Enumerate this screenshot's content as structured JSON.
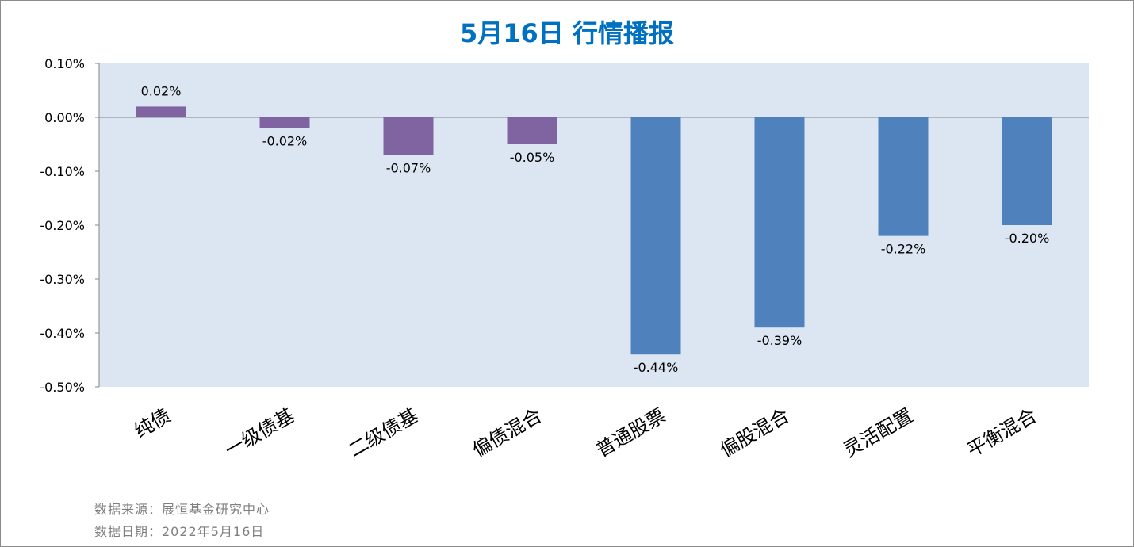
{
  "chart_data": {
    "type": "bar",
    "title": "5月16日  行情播报",
    "categories": [
      "纯债",
      "一级债基",
      "二级债基",
      "偏债混合",
      "普通股票",
      "偏股混合",
      "灵活配置",
      "平衡混合"
    ],
    "values": [
      0.02,
      -0.02,
      -0.07,
      -0.05,
      -0.44,
      -0.39,
      -0.22,
      -0.2
    ],
    "data_labels": [
      "0.02%",
      "-0.02%",
      "-0.07%",
      "-0.05%",
      "-0.44%",
      "-0.39%",
      "-0.22%",
      "-0.20%"
    ],
    "bar_colors": [
      "#8064a2",
      "#8064a2",
      "#8064a2",
      "#8064a2",
      "#4f81bd",
      "#4f81bd",
      "#4f81bd",
      "#4f81bd"
    ],
    "ylim": [
      -0.5,
      0.1
    ],
    "yticks": [
      0.1,
      0.0,
      -0.1,
      -0.2,
      -0.3,
      -0.4,
      -0.5
    ],
    "ytick_labels": [
      "0.10%",
      "0.00%",
      "-0.10%",
      "-0.20%",
      "-0.30%",
      "-0.40%",
      "-0.50%"
    ],
    "grid": false,
    "title_color": "#0070c0",
    "plot_background": "#dce6f2"
  },
  "footer": {
    "source": "数据来源：展恒基金研究中心",
    "date": "数据日期：2022年5月16日"
  }
}
